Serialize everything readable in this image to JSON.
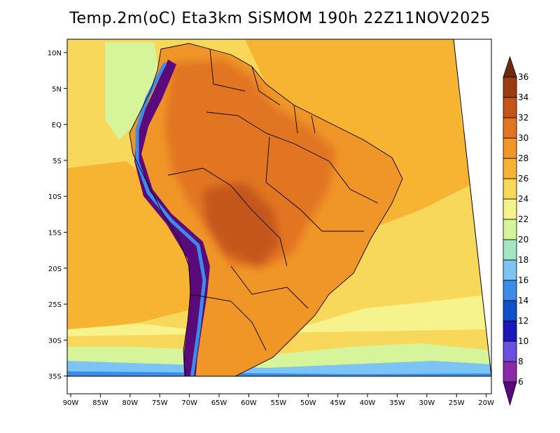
{
  "title": "Temp.2m(oC) Eta3km SiSMOM 190h 22Z11NOV2025",
  "lat_labels": [
    "10N",
    "5N",
    "EQ",
    "5S",
    "10S",
    "15S",
    "20S",
    "25S",
    "30S",
    "35S"
  ],
  "lon_labels": [
    "90W",
    "85W",
    "80W",
    "75W",
    "70W",
    "65W",
    "60W",
    "55W",
    "50W",
    "45W",
    "40W",
    "35W",
    "30W",
    "25W",
    "20W"
  ],
  "colorbar": {
    "labels": [
      "6",
      "8",
      "10",
      "12",
      "14",
      "16",
      "18",
      "20",
      "22",
      "24",
      "26",
      "28",
      "30",
      "32",
      "34",
      "36"
    ],
    "colors": [
      "#5a0a7a",
      "#8a2aa8",
      "#6b4fe0",
      "#1a18b8",
      "#1050c8",
      "#3a8ce8",
      "#7cc4f4",
      "#a4e6c4",
      "#d6f49a",
      "#f6f28c",
      "#f8d85a",
      "#f6b432",
      "#f09628",
      "#e27422",
      "#c4561a",
      "#9a3e12",
      "#6e2a0c"
    ]
  },
  "field_colors": {
    "ocean_warm": "#f6b432",
    "ocean_mid": "#f8d85a",
    "ocean_cool": "#f6f28c",
    "ocean_cold": "#d6f49a",
    "ocean_colder": "#7cc4f4",
    "ocean_coldest": "#3a8ce8",
    "land_hot": "#e27422",
    "land_hottest": "#c4561a",
    "land_warm": "#f09628",
    "andes": "#5a0a7a"
  }
}
